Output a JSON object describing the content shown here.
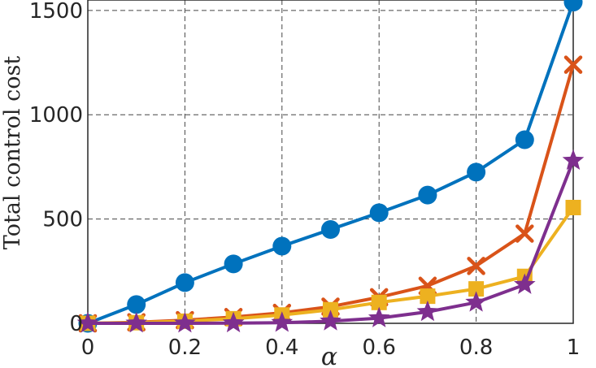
{
  "chart_data": {
    "type": "line",
    "title": "",
    "xlabel": "α",
    "ylabel": "Total control cost",
    "xlim": [
      0,
      1
    ],
    "ylim": [
      0,
      1550
    ],
    "grid": true,
    "x": [
      0,
      0.1,
      0.2,
      0.3,
      0.4,
      0.5,
      0.6,
      0.7,
      0.8,
      0.9,
      1.0
    ],
    "xticks": [
      0,
      0.2,
      0.4,
      0.6,
      0.8,
      1
    ],
    "xtick_labels": [
      "0",
      "0.2",
      "0.4",
      "0.6",
      "0.8",
      "1"
    ],
    "yticks": [
      0,
      500,
      1000,
      1500
    ],
    "ytick_labels": [
      "0",
      "500",
      "1000",
      "1500"
    ],
    "series": [
      {
        "color": "#0072BD",
        "marker": "circle",
        "values": [
          0,
          90,
          195,
          285,
          370,
          450,
          530,
          615,
          725,
          880,
          1540
        ]
      },
      {
        "color": "#D95319",
        "marker": "x",
        "values": [
          0,
          5,
          15,
          30,
          50,
          80,
          125,
          180,
          275,
          430,
          1240
        ]
      },
      {
        "color": "#EDB120",
        "marker": "square",
        "values": [
          0,
          3,
          10,
          22,
          40,
          65,
          100,
          130,
          165,
          225,
          555
        ]
      },
      {
        "color": "#7E2F8E",
        "marker": "star",
        "values": [
          0,
          0,
          0,
          1,
          3,
          10,
          25,
          55,
          100,
          185,
          780
        ]
      }
    ]
  }
}
